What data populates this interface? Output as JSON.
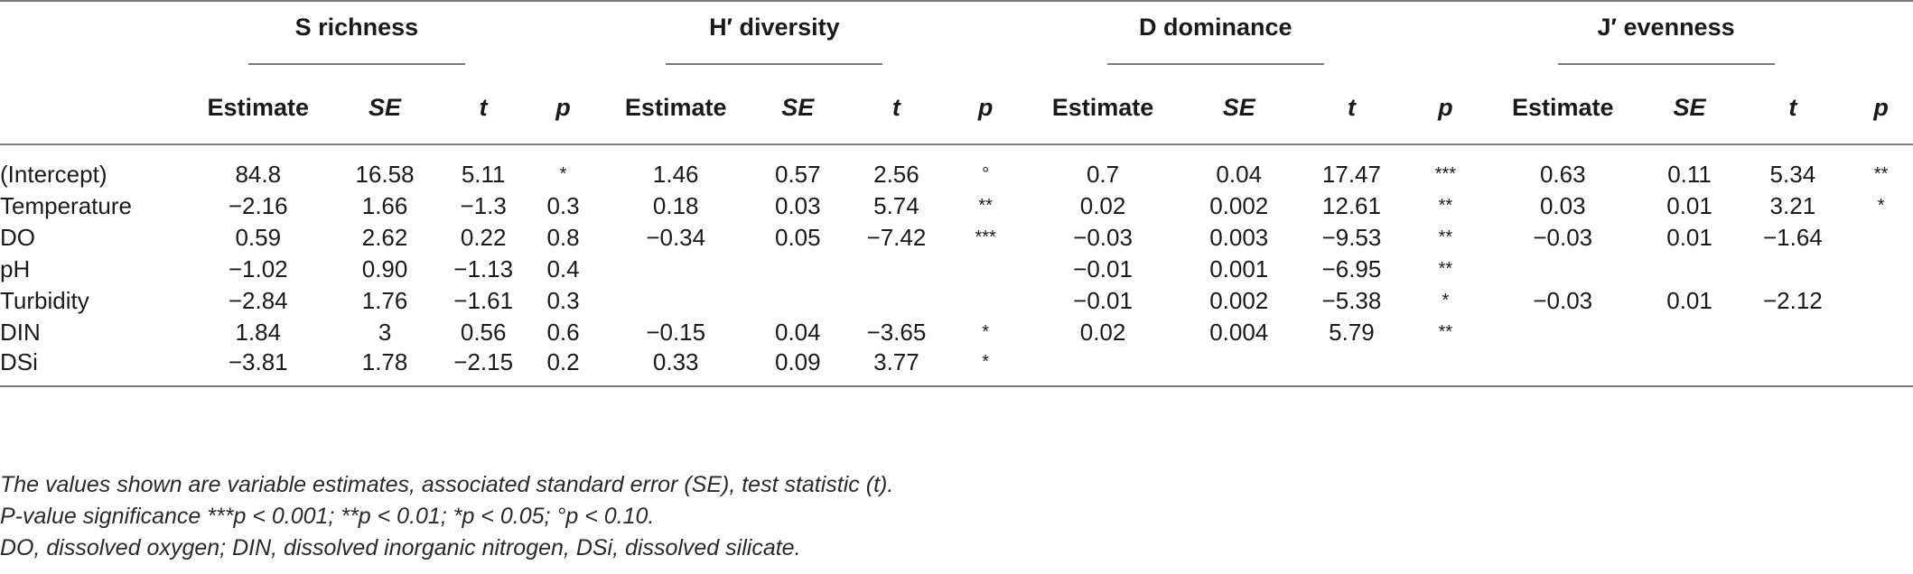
{
  "groups": [
    {
      "label": "S richness"
    },
    {
      "label": "H′ diversity"
    },
    {
      "label": "D dominance"
    },
    {
      "label": "J′ evenness"
    }
  ],
  "columns": [
    "Estimate",
    "SE",
    "t",
    "p"
  ],
  "rows": [
    {
      "label": "(Intercept)",
      "cells": [
        "84.8",
        "16.58",
        "5.11",
        "*",
        "1.46",
        "0.57",
        "2.56",
        "°",
        "0.7",
        "0.04",
        "17.47",
        "***",
        "0.63",
        "0.11",
        "5.34",
        "**"
      ]
    },
    {
      "label": "Temperature",
      "cells": [
        "−2.16",
        "1.66",
        "−1.3",
        "0.3",
        "0.18",
        "0.03",
        "5.74",
        "**",
        "0.02",
        "0.002",
        "12.61",
        "**",
        "0.03",
        "0.01",
        "3.21",
        "*"
      ]
    },
    {
      "label": "DO",
      "cells": [
        "0.59",
        "2.62",
        "0.22",
        "0.8",
        "−0.34",
        "0.05",
        "−7.42",
        "***",
        "−0.03",
        "0.003",
        "−9.53",
        "**",
        "−0.03",
        "0.01",
        "−1.64",
        ""
      ]
    },
    {
      "label": "pH",
      "cells": [
        "−1.02",
        "0.90",
        "−1.13",
        "0.4",
        "",
        "",
        "",
        "",
        "−0.01",
        "0.001",
        "−6.95",
        "**",
        "",
        "",
        "",
        ""
      ]
    },
    {
      "label": "Turbidity",
      "cells": [
        "−2.84",
        "1.76",
        "−1.61",
        "0.3",
        "",
        "",
        "",
        "",
        "−0.01",
        "0.002",
        "−5.38",
        "*",
        "−0.03",
        "0.01",
        "−2.12",
        ""
      ]
    },
    {
      "label": "DIN",
      "cells": [
        "1.84",
        "3",
        "0.56",
        "0.6",
        "−0.15",
        "0.04",
        "−3.65",
        "*",
        "0.02",
        "0.004",
        "5.79",
        "**",
        "",
        "",
        "",
        ""
      ]
    },
    {
      "label": "DSi",
      "cells": [
        "−3.81",
        "1.78",
        "−2.15",
        "0.2",
        "0.33",
        "0.09",
        "3.77",
        "*",
        "",
        "",
        "",
        "",
        "",
        "",
        "",
        ""
      ]
    }
  ],
  "notes": [
    "The values shown are variable estimates, associated standard error (SE), test statistic (t).",
    "P-value significance ***p < 0.001; **p < 0.01; *p < 0.05; °p < 0.10.",
    "DO, dissolved oxygen; DIN, dissolved inorganic nitrogen, DSi, dissolved silicate."
  ]
}
